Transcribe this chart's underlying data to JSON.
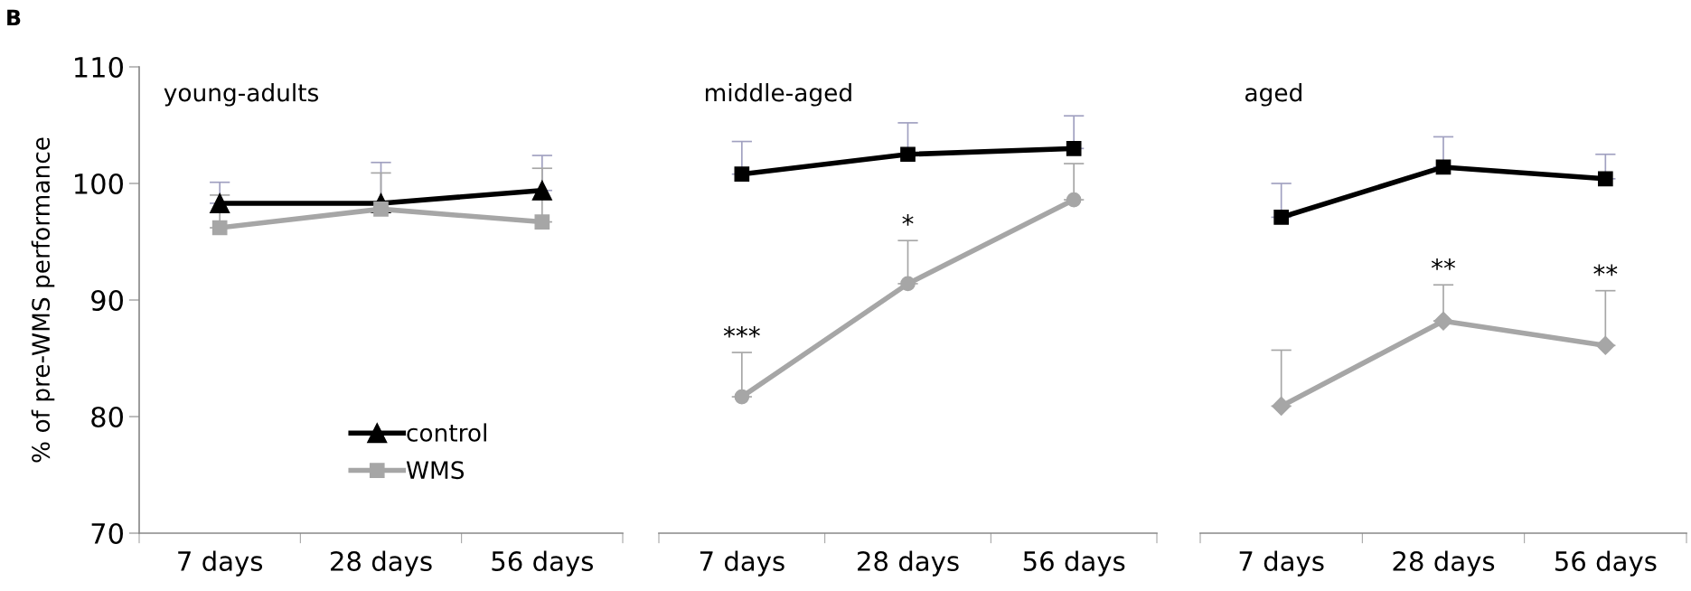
{
  "chart_data": [
    {
      "type": "line",
      "title": "young-adults",
      "ylabel": "% of pre-WMS performance",
      "annotations": [
        "B"
      ],
      "categories": [
        "7 days",
        "28 days",
        "56 days"
      ],
      "ylim": [
        70,
        110
      ],
      "yticks": [
        70,
        80,
        90,
        100,
        110
      ],
      "legend": "bottom",
      "series": [
        {
          "name": "control",
          "color": "#000000",
          "marker": "triangle",
          "values": [
            98.3,
            98.3,
            99.4
          ],
          "errors": [
            [
              98.3,
              100.1
            ],
            [
              98.3,
              101.8
            ],
            [
              99.4,
              102.4
            ]
          ]
        },
        {
          "name": "WMS",
          "color": "#a6a6a6",
          "marker": "square",
          "values": [
            96.2,
            97.8,
            96.7
          ],
          "errors": [
            [
              96.2,
              99.0
            ],
            [
              97.8,
              100.9
            ],
            [
              96.7,
              101.3
            ]
          ]
        }
      ]
    },
    {
      "type": "line",
      "title": "middle-aged",
      "categories": [
        "7 days",
        "28 days",
        "56 days"
      ],
      "ylim": [
        70,
        110
      ],
      "tick_labels": "x",
      "annotations": [
        {
          "text": "***",
          "x": "7 days",
          "y": 85.5
        },
        {
          "text": "*",
          "x": "28 days",
          "y": 95.1
        }
      ],
      "series": [
        {
          "color": "#000000",
          "marker": "square",
          "values": [
            100.8,
            102.5,
            103.0
          ],
          "errors": [
            [
              100.8,
              103.6
            ],
            [
              102.5,
              105.2
            ],
            [
              103.0,
              105.8
            ]
          ]
        },
        {
          "color": "#a6a6a6",
          "marker": "circle",
          "values": [
            81.7,
            91.4,
            98.6
          ],
          "errors": [
            [
              81.7,
              85.5
            ],
            [
              91.4,
              95.1
            ],
            [
              98.6,
              101.7
            ]
          ]
        }
      ]
    },
    {
      "type": "line",
      "title": "aged",
      "categories": [
        "7 days",
        "28 days",
        "56 days"
      ],
      "ylim": [
        70,
        110
      ],
      "tick_labels": "x",
      "annotations": [
        {
          "text": "**",
          "x": "28 days",
          "y": 91.3
        },
        {
          "text": "**",
          "x": "56 days",
          "y": 90.8
        }
      ],
      "series": [
        {
          "color": "#000000",
          "marker": "square",
          "values": [
            97.1,
            101.4,
            100.4
          ],
          "errors": [
            [
              97.1,
              100.0
            ],
            [
              101.4,
              104.0
            ],
            [
              100.4,
              102.5
            ]
          ]
        },
        {
          "color": "#a6a6a6",
          "marker": "diamond",
          "values": [
            80.9,
            88.2,
            86.1
          ],
          "errors": [
            [
              80.9,
              85.7
            ],
            [
              88.2,
              91.3
            ],
            [
              86.1,
              90.8
            ]
          ]
        }
      ]
    }
  ]
}
